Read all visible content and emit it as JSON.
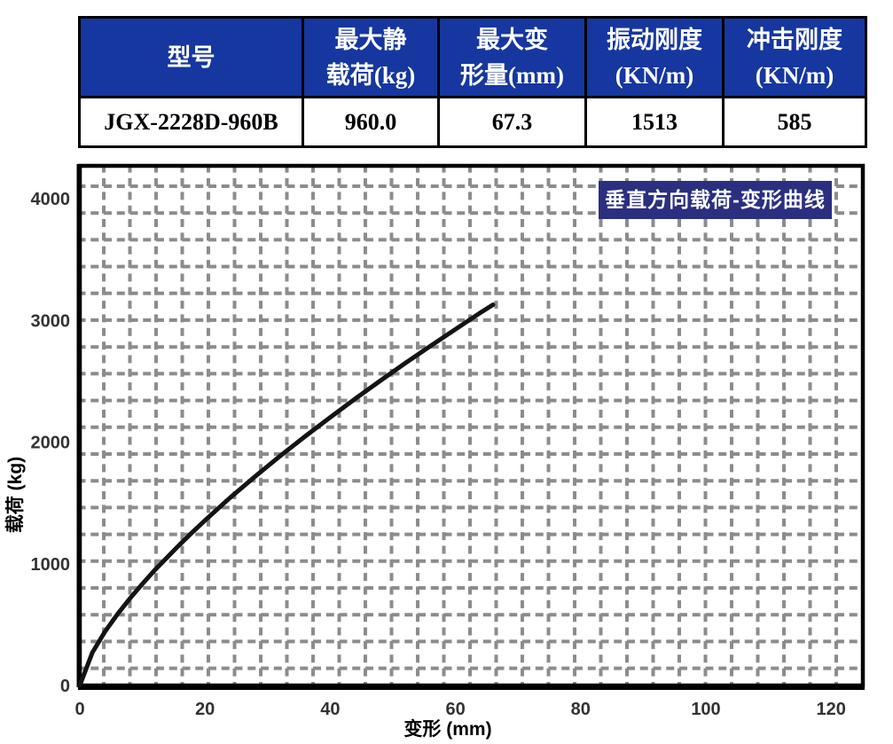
{
  "table": {
    "columns": [
      {
        "header_lines": [
          "型号"
        ],
        "value": "JGX-2228D-960B"
      },
      {
        "header_lines": [
          "最大静",
          "载荷(kg)"
        ],
        "value": "960.0"
      },
      {
        "header_lines": [
          "最大变",
          "形量(mm)"
        ],
        "value": "67.3"
      },
      {
        "header_lines": [
          "振动刚度",
          "(KN/m)"
        ],
        "value": "1513"
      },
      {
        "header_lines": [
          "冲击刚度",
          "(KN/m)"
        ],
        "value": "585"
      }
    ]
  },
  "chart_data": {
    "type": "line",
    "title": "垂直方向载荷-变形曲线",
    "xlabel": "变形 (mm)",
    "ylabel": "载荷 (kg)",
    "xlim": [
      0,
      125
    ],
    "ylim": [
      0,
      4300
    ],
    "x_ticks": [
      0,
      20,
      40,
      60,
      80,
      100,
      120
    ],
    "y_ticks": [
      0,
      1000,
      2000,
      3000,
      4000
    ],
    "grid": "dashed",
    "legend": "none",
    "series": [
      {
        "name": "垂直方向载荷-变形曲线",
        "points": [
          [
            0,
            0
          ],
          [
            2,
            270
          ],
          [
            4,
            440
          ],
          [
            6,
            585
          ],
          [
            8,
            715
          ],
          [
            10,
            835
          ],
          [
            12,
            950
          ],
          [
            14,
            1055
          ],
          [
            16,
            1160
          ],
          [
            18,
            1260
          ],
          [
            20,
            1357
          ],
          [
            24,
            1543
          ],
          [
            28,
            1718
          ],
          [
            32,
            1886
          ],
          [
            36,
            2048
          ],
          [
            40,
            2204
          ],
          [
            44,
            2357
          ],
          [
            48,
            2505
          ],
          [
            52,
            2650
          ],
          [
            56,
            2790
          ],
          [
            60,
            2928
          ],
          [
            64,
            3064
          ],
          [
            66,
            3130
          ]
        ]
      }
    ]
  },
  "colors": {
    "table_header_bg": "#16379f",
    "table_header_text": "#ffffff",
    "title_box_bg": "#2a2f80",
    "title_box_text": "#ffffff",
    "grid": "#8c8c8c",
    "curve": "#141414",
    "axis": "#000000",
    "tick_label": "#333333"
  }
}
